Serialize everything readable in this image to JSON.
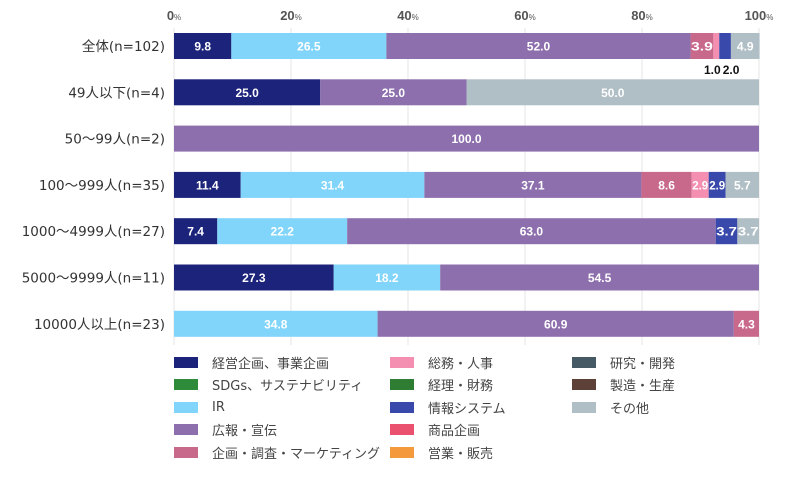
{
  "chart_data": {
    "type": "bar",
    "orientation": "horizontal",
    "stacked": true,
    "title": "",
    "xlabel": "",
    "ylabel": "",
    "xlim": [
      0,
      100
    ],
    "x_ticks": [
      "0",
      "20",
      "40",
      "60",
      "80",
      "100"
    ],
    "x_tick_suffix": "%",
    "grid": true,
    "legend_position": "bottom",
    "categories": [
      "全体(n=102)",
      "49人以下(n=4)",
      "50〜99人(n=2)",
      "100〜999人(n=35)",
      "1000〜4999人(n=27)",
      "5000〜9999人(n=11)",
      "10000人以上(n=23)"
    ],
    "series": [
      {
        "name": "経営企画、事業企画",
        "color": "#1c237a",
        "values": [
          9.8,
          25.0,
          0,
          11.4,
          7.4,
          27.3,
          0
        ]
      },
      {
        "name": "SDGs、サステナビリティ",
        "color": "#2e8b3a",
        "values": [
          0,
          0,
          0,
          0,
          0,
          0,
          0
        ]
      },
      {
        "name": "IR",
        "color": "#81d4fa",
        "values": [
          26.5,
          0,
          0,
          31.4,
          22.2,
          18.2,
          34.8
        ]
      },
      {
        "name": "広報・宣伝",
        "color": "#8e6fad",
        "values": [
          52.0,
          25.0,
          100.0,
          37.1,
          63.0,
          54.5,
          60.9
        ]
      },
      {
        "name": "企画・調査・マーケティング",
        "color": "#c8688a",
        "values": [
          3.9,
          0,
          0,
          8.6,
          0,
          0,
          4.3
        ]
      },
      {
        "name": "総務・人事",
        "color": "#f48fb1",
        "values": [
          1.0,
          0,
          0,
          2.9,
          0,
          0,
          0
        ]
      },
      {
        "name": "経理・財務",
        "color": "#2e7d32",
        "values": [
          0,
          0,
          0,
          0,
          0,
          0,
          0
        ]
      },
      {
        "name": "情報システム",
        "color": "#3949ab",
        "values": [
          2.0,
          0,
          0,
          2.9,
          3.7,
          0,
          0
        ]
      },
      {
        "name": "商品企画",
        "color": "#e9516e",
        "values": [
          0,
          0,
          0,
          0,
          0,
          0,
          0
        ]
      },
      {
        "name": "営業・販売",
        "color": "#f59a3c",
        "values": [
          0,
          0,
          0,
          0,
          0,
          0,
          0
        ]
      },
      {
        "name": "研究・開発",
        "color": "#455a64",
        "values": [
          0,
          0,
          0,
          0,
          0,
          0,
          0
        ]
      },
      {
        "name": "製造・生産",
        "color": "#5d4037",
        "values": [
          0,
          0,
          0,
          0,
          0,
          0,
          0
        ]
      },
      {
        "name": "その他",
        "color": "#b0bec5",
        "values": [
          4.9,
          50.0,
          0,
          5.7,
          3.7,
          0,
          0
        ]
      }
    ],
    "outside_labels": [
      {
        "category_index": 0,
        "series_index": 5,
        "text": "1.0"
      },
      {
        "category_index": 0,
        "series_index": 7,
        "text": "2.0"
      }
    ]
  }
}
